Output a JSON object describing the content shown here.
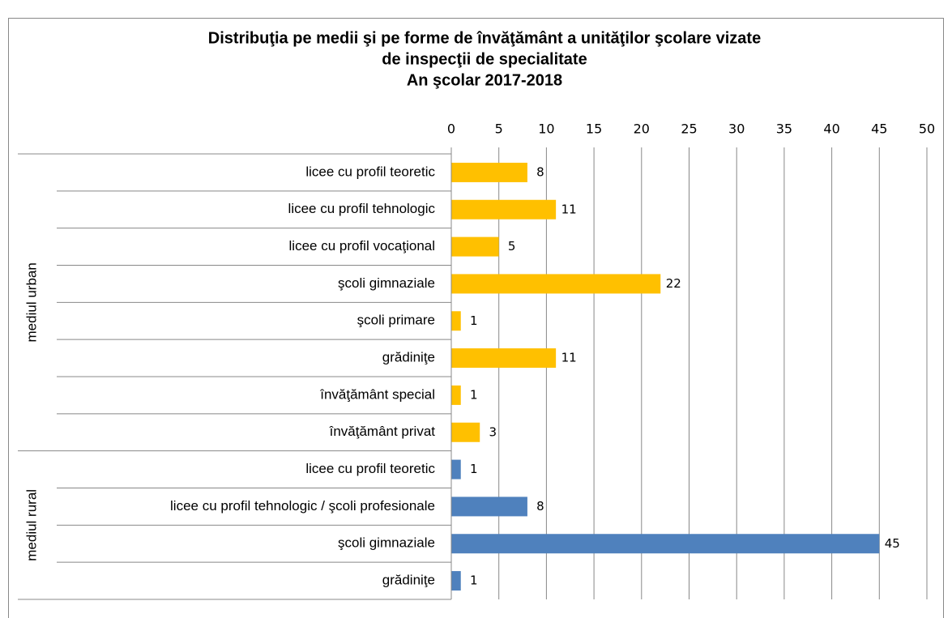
{
  "chart_data": {
    "type": "bar",
    "orientation": "horizontal",
    "title": [
      "Distribuţia pe medii şi pe forme de învăţământ a unităţilor şcolare vizate",
      "de inspecţii de specialitate",
      "An şcolar 2017-2018"
    ],
    "groups": [
      {
        "name": "mediul urban",
        "color": "#ffc000",
        "categories": [
          "licee cu profil teoretic",
          "licee cu profil tehnologic",
          "licee cu profil vocaţional",
          "şcoli gimnaziale",
          "şcoli primare",
          "grădiniţe",
          "învăţământ special",
          "învăţământ privat"
        ],
        "values": [
          8,
          11,
          5,
          22,
          1,
          11,
          1,
          3
        ]
      },
      {
        "name": "mediul rural",
        "color": "#4f81bd",
        "categories": [
          "licee cu profil teoretic",
          "licee cu profil tehnologic / şcoli profesionale",
          "şcoli gimnaziale",
          "grădiniţe"
        ],
        "values": [
          1,
          8,
          45,
          1
        ]
      }
    ],
    "xlim": [
      0,
      50
    ],
    "xticks": [
      0,
      5,
      10,
      15,
      20,
      25,
      30,
      35,
      40,
      45,
      50
    ],
    "grid": true
  }
}
